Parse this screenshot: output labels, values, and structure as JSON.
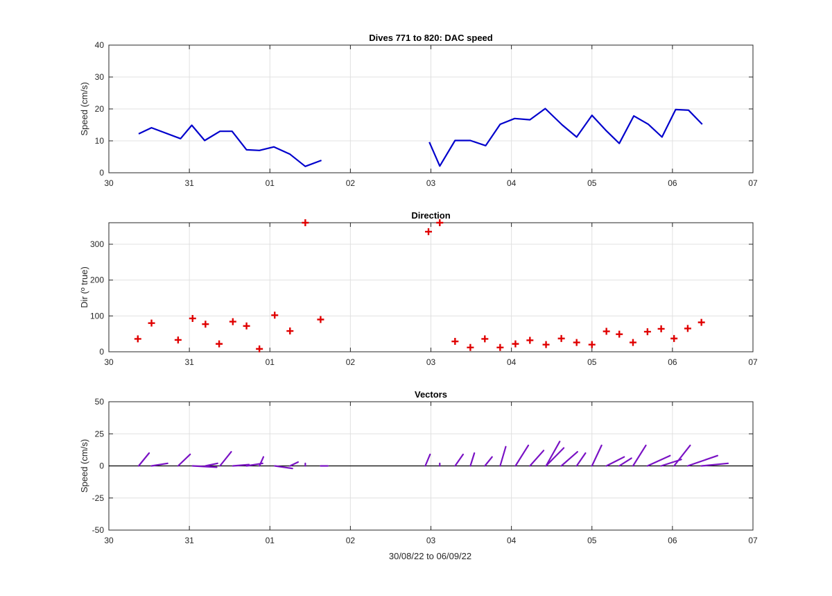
{
  "figure": {
    "xlabel": "30/08/22 to 06/09/22",
    "x_tick_labels": [
      "30",
      "31",
      "01",
      "02",
      "03",
      "04",
      "05",
      "06",
      "07"
    ]
  },
  "colors": {
    "speed": "#0000cc",
    "direction": "#e00000",
    "vectors": "#7a12c4",
    "zero_line": "#000000"
  },
  "chart_data": [
    {
      "type": "line",
      "title": "Dives 771 to 820: DAC speed",
      "ylabel": "Speed (cm/s)",
      "xlim": [
        0,
        8
      ],
      "ylim": [
        0,
        40
      ],
      "yticks": [
        0,
        10,
        20,
        30,
        40
      ],
      "grid": true,
      "series": [
        {
          "segments": [
            {
              "x": [
                0.37,
                0.53,
                0.89,
                1.03,
                1.19,
                1.38,
                1.53,
                1.71,
                1.87,
                2.05,
                2.25,
                2.44,
                2.64
              ],
              "y": [
                12.2,
                14.1,
                10.7,
                14.9,
                10.1,
                13.0,
                13.0,
                7.2,
                7.0,
                8.1,
                5.8,
                2.0,
                3.9
              ]
            },
            {
              "x": [
                3.98,
                4.11,
                4.3,
                4.49,
                4.68,
                4.86,
                5.04,
                5.23,
                5.42,
                5.63,
                5.81,
                6.0,
                6.18,
                6.34,
                6.52,
                6.7,
                6.87,
                7.04,
                7.2,
                7.37
              ],
              "y": [
                9.6,
                2.1,
                10.1,
                10.1,
                8.5,
                15.2,
                17.0,
                16.6,
                20.1,
                15.0,
                11.2,
                18.0,
                13.1,
                9.2,
                17.8,
                15.2,
                11.2,
                19.8,
                19.6,
                15.2
              ]
            }
          ]
        }
      ]
    },
    {
      "type": "scatter",
      "title": "Direction",
      "ylabel": "Dir (º true)",
      "xlim": [
        0,
        8
      ],
      "ylim": [
        0,
        360
      ],
      "yticks": [
        0,
        100,
        200,
        300
      ],
      "grid": true,
      "marker": "+",
      "points": [
        [
          0.36,
          36
        ],
        [
          0.53,
          80
        ],
        [
          0.86,
          33
        ],
        [
          1.04,
          93
        ],
        [
          1.2,
          77
        ],
        [
          1.37,
          22
        ],
        [
          1.54,
          84
        ],
        [
          1.71,
          72
        ],
        [
          1.87,
          8
        ],
        [
          2.06,
          102
        ],
        [
          2.25,
          58
        ],
        [
          2.44,
          360
        ],
        [
          2.63,
          90
        ],
        [
          3.97,
          335
        ],
        [
          4.11,
          360
        ],
        [
          4.3,
          29
        ],
        [
          4.49,
          12
        ],
        [
          4.67,
          36
        ],
        [
          4.86,
          12
        ],
        [
          5.05,
          22
        ],
        [
          5.23,
          32
        ],
        [
          5.43,
          20
        ],
        [
          5.62,
          37
        ],
        [
          5.81,
          26
        ],
        [
          6.0,
          20
        ],
        [
          6.18,
          57
        ],
        [
          6.34,
          49
        ],
        [
          6.51,
          26
        ],
        [
          6.69,
          56
        ],
        [
          6.86,
          64
        ],
        [
          7.02,
          37
        ],
        [
          7.19,
          65
        ],
        [
          7.36,
          82
        ]
      ]
    },
    {
      "type": "vector",
      "title": "Vectors",
      "ylabel": "Speed (cm/s)",
      "xlabel": "30/08/22 to 06/09/22",
      "xlim": [
        0,
        8
      ],
      "ylim": [
        -50,
        50
      ],
      "yticks": [
        -50,
        -25,
        0,
        25,
        50
      ],
      "grid": true,
      "vectors": [
        {
          "x": 0.37,
          "dx": 0.13,
          "dy": 10
        },
        {
          "x": 0.53,
          "dx": 0.2,
          "dy": 2
        },
        {
          "x": 0.86,
          "dx": 0.15,
          "dy": 9
        },
        {
          "x": 1.04,
          "dx": 0.3,
          "dy": -1
        },
        {
          "x": 1.2,
          "dx": 0.15,
          "dy": 2
        },
        {
          "x": 1.38,
          "dx": 0.14,
          "dy": 11
        },
        {
          "x": 1.54,
          "dx": 0.2,
          "dy": 1
        },
        {
          "x": 1.71,
          "dx": 0.2,
          "dy": 2
        },
        {
          "x": 1.87,
          "dx": 0.05,
          "dy": 7
        },
        {
          "x": 2.06,
          "dx": 0.22,
          "dy": -2
        },
        {
          "x": 2.25,
          "dx": 0.1,
          "dy": 3
        },
        {
          "x": 2.44,
          "dx": 0.0,
          "dy": 2
        },
        {
          "x": 2.63,
          "dx": 0.09,
          "dy": 0
        },
        {
          "x": 3.93,
          "dx": 0.06,
          "dy": 9
        },
        {
          "x": 4.11,
          "dx": 0.0,
          "dy": 2
        },
        {
          "x": 4.3,
          "dx": 0.1,
          "dy": 9
        },
        {
          "x": 4.49,
          "dx": 0.05,
          "dy": 10
        },
        {
          "x": 4.67,
          "dx": 0.09,
          "dy": 7
        },
        {
          "x": 4.86,
          "dx": 0.07,
          "dy": 15
        },
        {
          "x": 5.05,
          "dx": 0.16,
          "dy": 16
        },
        {
          "x": 5.23,
          "dx": 0.17,
          "dy": 12
        },
        {
          "x": 5.43,
          "dx": 0.22,
          "dy": 14
        },
        {
          "x": 5.43,
          "dx": 0.17,
          "dy": 19
        },
        {
          "x": 5.62,
          "dx": 0.2,
          "dy": 11
        },
        {
          "x": 5.81,
          "dx": 0.11,
          "dy": 10
        },
        {
          "x": 6.0,
          "dx": 0.12,
          "dy": 16
        },
        {
          "x": 6.18,
          "dx": 0.22,
          "dy": 7
        },
        {
          "x": 6.34,
          "dx": 0.15,
          "dy": 6
        },
        {
          "x": 6.51,
          "dx": 0.16,
          "dy": 16
        },
        {
          "x": 6.69,
          "dx": 0.28,
          "dy": 8
        },
        {
          "x": 6.86,
          "dx": 0.25,
          "dy": 5
        },
        {
          "x": 7.02,
          "dx": 0.2,
          "dy": 16
        },
        {
          "x": 7.19,
          "dx": 0.37,
          "dy": 8
        },
        {
          "x": 7.36,
          "dx": 0.33,
          "dy": 2
        }
      ]
    }
  ]
}
